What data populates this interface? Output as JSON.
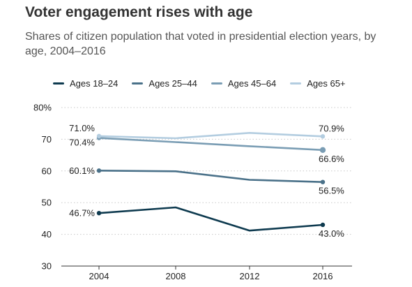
{
  "chart_data": {
    "type": "line",
    "title": "Voter engagement rises with age",
    "subtitle": "Shares of citizen population that voted in presidential election years, by age, 2004–2016",
    "xlabel": "",
    "ylabel": "",
    "x": [
      "2004",
      "2008",
      "2012",
      "2016"
    ],
    "ylim": [
      30,
      80
    ],
    "yticks": [
      "30",
      "40",
      "50",
      "60",
      "70",
      "80%"
    ],
    "ytick_values": [
      30,
      40,
      50,
      60,
      70,
      80
    ],
    "grid": true,
    "legend_position": "top",
    "series": [
      {
        "name": "Ages 18–24",
        "color": "#0e3a4f",
        "values": [
          46.7,
          48.5,
          41.2,
          43.0
        ],
        "labels": [
          {
            "i": 0,
            "text": "46.7%",
            "side": "left"
          },
          {
            "i": 3,
            "text": "43.0%",
            "side": "right"
          }
        ]
      },
      {
        "name": "Ages 25–44",
        "color": "#4a7189",
        "values": [
          60.1,
          59.9,
          57.2,
          56.5
        ],
        "labels": [
          {
            "i": 0,
            "text": "60.1%",
            "side": "left"
          },
          {
            "i": 3,
            "text": "56.5%",
            "side": "right"
          }
        ]
      },
      {
        "name": "Ages 45–64",
        "color": "#7a9db4",
        "values": [
          70.4,
          69.1,
          67.8,
          66.6
        ],
        "labels": [
          {
            "i": 0,
            "text": "70.4%",
            "side": "left"
          },
          {
            "i": 3,
            "text": "66.6%",
            "side": "right"
          }
        ]
      },
      {
        "name": "Ages 65+",
        "color": "#b3cde0",
        "values": [
          71.0,
          70.3,
          72.0,
          70.9
        ],
        "labels": [
          {
            "i": 0,
            "text": "71.0%",
            "side": "left"
          },
          {
            "i": 3,
            "text": "70.9%",
            "side": "right"
          }
        ]
      }
    ]
  }
}
